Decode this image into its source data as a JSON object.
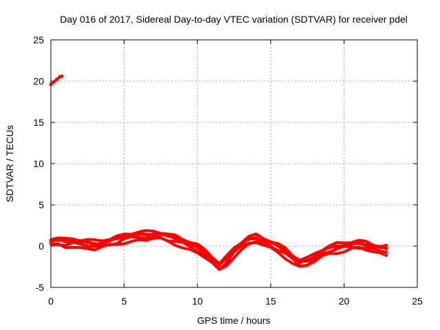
{
  "chart_data": {
    "type": "scatter",
    "title": "Day 016 of 2017, Sidereal Day-to-day VTEC variation (SDTVAR) for receiver pdel",
    "xlabel": "GPS time / hours",
    "ylabel": "SDTVAR / TECUs",
    "xlim": [
      0,
      25
    ],
    "ylim": [
      -5,
      25
    ],
    "xticks": [
      "0",
      "5",
      "10",
      "15",
      "20",
      "25"
    ],
    "yticks": [
      "-5",
      "0",
      "5",
      "10",
      "15",
      "20",
      "25"
    ],
    "grid": true,
    "series_color": "#ff0000",
    "series": [
      {
        "name": "SDTVAR",
        "segment_early": [
          [
            0.0,
            19.6
          ],
          [
            0.2,
            19.9
          ],
          [
            0.4,
            20.2
          ],
          [
            0.6,
            20.5
          ],
          [
            0.75,
            20.6
          ]
        ],
        "segment_main": [
          [
            0.0,
            0.6
          ],
          [
            0.5,
            0.7
          ],
          [
            1.0,
            0.6
          ],
          [
            1.5,
            0.7
          ],
          [
            2.0,
            0.5
          ],
          [
            2.5,
            0.4
          ],
          [
            3.0,
            0.3
          ],
          [
            3.5,
            0.4
          ],
          [
            4.0,
            0.6
          ],
          [
            4.5,
            0.9
          ],
          [
            5.0,
            1.2
          ],
          [
            5.5,
            1.3
          ],
          [
            6.0,
            1.4
          ],
          [
            6.5,
            1.4
          ],
          [
            7.0,
            1.5
          ],
          [
            7.5,
            1.4
          ],
          [
            8.0,
            1.2
          ],
          [
            8.5,
            1.0
          ],
          [
            9.0,
            0.6
          ],
          [
            9.5,
            0.2
          ],
          [
            10.0,
            -0.2
          ],
          [
            10.5,
            -0.8
          ],
          [
            11.0,
            -1.5
          ],
          [
            11.5,
            -2.3
          ],
          [
            12.0,
            -1.5
          ],
          [
            12.5,
            -0.5
          ],
          [
            13.0,
            0.2
          ],
          [
            13.5,
            0.8
          ],
          [
            14.0,
            1.0
          ],
          [
            14.5,
            0.7
          ],
          [
            15.0,
            0.4
          ],
          [
            15.5,
            0.0
          ],
          [
            16.0,
            -0.6
          ],
          [
            16.5,
            -1.4
          ],
          [
            17.0,
            -2.0
          ],
          [
            17.5,
            -1.8
          ],
          [
            18.0,
            -1.2
          ],
          [
            18.5,
            -0.6
          ],
          [
            19.0,
            -0.2
          ],
          [
            19.5,
            0.0
          ],
          [
            20.0,
            0.1
          ],
          [
            20.5,
            0.2
          ],
          [
            21.0,
            0.3
          ],
          [
            21.5,
            0.2
          ],
          [
            22.0,
            0.0
          ],
          [
            22.5,
            -0.2
          ],
          [
            22.9,
            -0.3
          ]
        ],
        "band_offsets": [
          0.0,
          -0.45,
          0.35,
          -0.8
        ]
      }
    ]
  }
}
